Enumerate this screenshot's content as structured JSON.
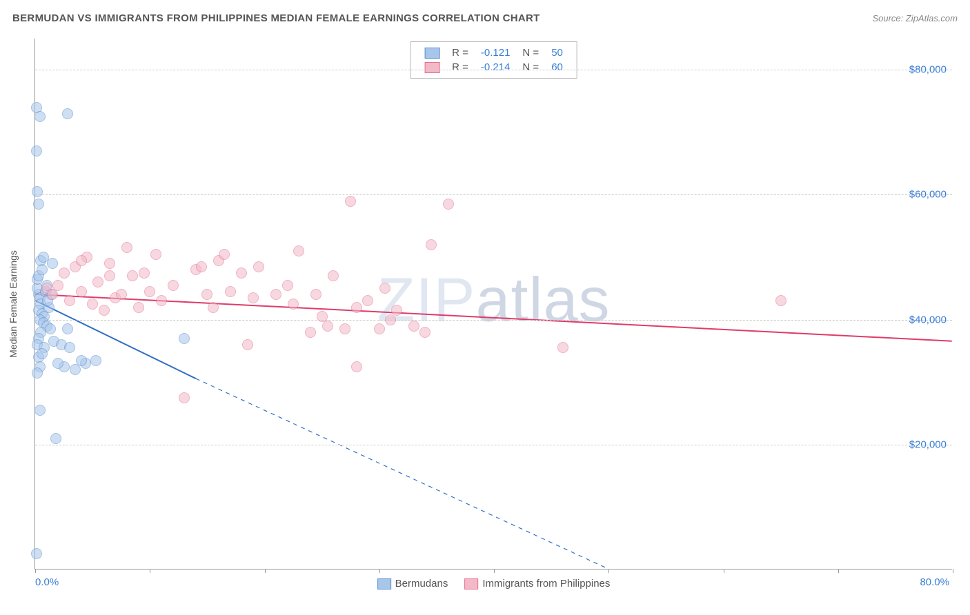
{
  "header": {
    "title": "BERMUDAN VS IMMIGRANTS FROM PHILIPPINES MEDIAN FEMALE EARNINGS CORRELATION CHART",
    "source_label": "Source: ",
    "source_value": "ZipAtlas.com"
  },
  "watermark": {
    "part1": "ZIP",
    "part2": "atlas"
  },
  "chart": {
    "type": "scatter",
    "background_color": "#ffffff",
    "grid_color": "#cccccc",
    "axis_color": "#999999",
    "ylabel": "Median Female Earnings",
    "ylabel_fontsize": 14,
    "xlim": [
      0,
      80
    ],
    "ylim": [
      0,
      85000
    ],
    "xtick_positions": [
      0,
      10,
      20,
      30,
      40,
      50,
      60,
      70,
      80
    ],
    "xtick_labels_shown": {
      "0": "0.0%",
      "80": "80.0%"
    },
    "ytick_positions": [
      20000,
      40000,
      60000,
      80000
    ],
    "ytick_labels": [
      "$20,000",
      "$40,000",
      "$60,000",
      "$80,000"
    ],
    "point_radius": 8,
    "point_opacity": 0.55,
    "series": [
      {
        "key": "bermudans",
        "label": "Bermudans",
        "color_fill": "#a8c6ea",
        "color_stroke": "#5a8fd0",
        "R": "-0.121",
        "N": "50",
        "trend": {
          "x1": 0,
          "y1": 43000,
          "x_solid_end": 14,
          "y_solid_end": 30500,
          "x2": 50,
          "y2": 0,
          "color": "#2f6fc4",
          "width": 2
        },
        "points": [
          [
            0.1,
            74000
          ],
          [
            0.3,
            58500
          ],
          [
            0.2,
            60500
          ],
          [
            0.1,
            67000
          ],
          [
            0.4,
            72500
          ],
          [
            2.8,
            73000
          ],
          [
            0.3,
            44000
          ],
          [
            0.4,
            43500
          ],
          [
            0.2,
            45000
          ],
          [
            0.5,
            42500
          ],
          [
            0.3,
            41500
          ],
          [
            0.6,
            41000
          ],
          [
            0.8,
            40500
          ],
          [
            0.4,
            40000
          ],
          [
            0.7,
            39500
          ],
          [
            1.0,
            39000
          ],
          [
            0.5,
            38000
          ],
          [
            1.2,
            42000
          ],
          [
            0.2,
            46500
          ],
          [
            0.3,
            47000
          ],
          [
            0.6,
            48000
          ],
          [
            0.9,
            44500
          ],
          [
            1.4,
            44000
          ],
          [
            1.1,
            43000
          ],
          [
            0.5,
            49500
          ],
          [
            0.3,
            37000
          ],
          [
            0.2,
            36000
          ],
          [
            0.8,
            35500
          ],
          [
            1.6,
            36500
          ],
          [
            2.5,
            32500
          ],
          [
            2.0,
            33000
          ],
          [
            2.3,
            36000
          ],
          [
            3.5,
            32000
          ],
          [
            3.0,
            35500
          ],
          [
            4.4,
            33000
          ],
          [
            5.3,
            33500
          ],
          [
            4.0,
            33500
          ],
          [
            0.4,
            25500
          ],
          [
            1.8,
            21000
          ],
          [
            13.0,
            37000
          ],
          [
            0.3,
            34000
          ],
          [
            0.6,
            34500
          ],
          [
            0.1,
            2500
          ],
          [
            0.7,
            50000
          ],
          [
            1.3,
            38500
          ],
          [
            2.8,
            38500
          ],
          [
            0.4,
            32500
          ],
          [
            0.2,
            31500
          ],
          [
            1.5,
            49000
          ],
          [
            1.0,
            45500
          ]
        ]
      },
      {
        "key": "philippines",
        "label": "Immigrants from Philippines",
        "color_fill": "#f4b9c7",
        "color_stroke": "#e57290",
        "R": "-0.214",
        "N": "60",
        "trend": {
          "x1": 0,
          "y1": 44000,
          "x_solid_end": 80,
          "y_solid_end": 36500,
          "x2": 80,
          "y2": 36500,
          "color": "#e03b6a",
          "width": 2
        },
        "points": [
          [
            1.0,
            45000
          ],
          [
            1.5,
            44000
          ],
          [
            2.0,
            45500
          ],
          [
            2.5,
            47500
          ],
          [
            3.0,
            43000
          ],
          [
            3.5,
            48500
          ],
          [
            4.0,
            44500
          ],
          [
            4.5,
            50000
          ],
          [
            5.0,
            42500
          ],
          [
            5.5,
            46000
          ],
          [
            6.0,
            41500
          ],
          [
            6.5,
            49000
          ],
          [
            7.0,
            43500
          ],
          [
            7.5,
            44000
          ],
          [
            8.0,
            51500
          ],
          [
            8.5,
            47000
          ],
          [
            9.0,
            42000
          ],
          [
            10.0,
            44500
          ],
          [
            10.5,
            50500
          ],
          [
            11.0,
            43000
          ],
          [
            12.0,
            45500
          ],
          [
            13.0,
            27500
          ],
          [
            14.0,
            48000
          ],
          [
            14.5,
            48500
          ],
          [
            15.0,
            44000
          ],
          [
            16.0,
            49500
          ],
          [
            16.5,
            50500
          ],
          [
            17.0,
            44500
          ],
          [
            18.0,
            47500
          ],
          [
            18.5,
            36000
          ],
          [
            19.0,
            43500
          ],
          [
            19.5,
            48500
          ],
          [
            15.5,
            42000
          ],
          [
            21.0,
            44000
          ],
          [
            22.0,
            45500
          ],
          [
            22.5,
            42500
          ],
          [
            23.0,
            51000
          ],
          [
            24.0,
            38000
          ],
          [
            24.5,
            44000
          ],
          [
            25.0,
            40500
          ],
          [
            25.5,
            39000
          ],
          [
            26.0,
            47000
          ],
          [
            27.0,
            38500
          ],
          [
            27.5,
            59000
          ],
          [
            28.0,
            42000
          ],
          [
            28.0,
            32500
          ],
          [
            29.0,
            43000
          ],
          [
            30.0,
            38500
          ],
          [
            30.5,
            45000
          ],
          [
            31.0,
            40000
          ],
          [
            31.5,
            41500
          ],
          [
            33.0,
            39000
          ],
          [
            34.0,
            38000
          ],
          [
            34.5,
            52000
          ],
          [
            36.0,
            58500
          ],
          [
            46.0,
            35500
          ],
          [
            65.0,
            43000
          ],
          [
            4.0,
            49500
          ],
          [
            6.5,
            47000
          ],
          [
            9.5,
            47500
          ]
        ]
      }
    ]
  },
  "legend_top": {
    "rows": [
      {
        "series_key": "bermudans",
        "R_label": "R =",
        "N_label": "N ="
      },
      {
        "series_key": "philippines",
        "R_label": "R =",
        "N_label": "N ="
      }
    ]
  }
}
